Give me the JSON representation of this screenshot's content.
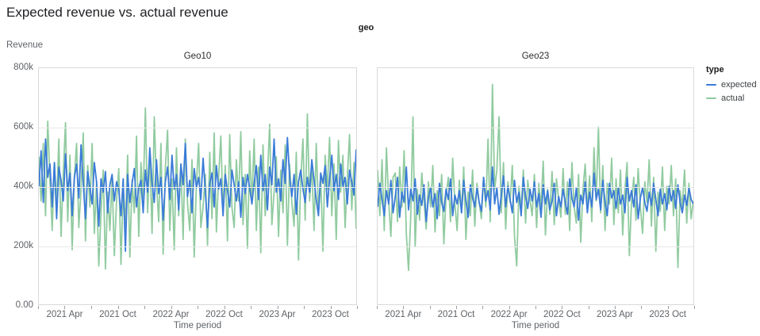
{
  "chart_data": {
    "type": "line",
    "title": "Expected revenue vs. actual revenue",
    "facet_field": "geo",
    "legend_title": "type",
    "legend_position": "right",
    "xlabel": "Time period",
    "ylabel": "Revenue",
    "x_domain": "weekly data, Jan 2021 - Dec 2023 (144 points per series)",
    "values_unit": "thousands of revenue (k)",
    "ylim_k": [
      0,
      800
    ],
    "grid": "horizontal",
    "y_ticks": [
      {
        "k": 0,
        "label": "0.00"
      },
      {
        "k": 200,
        "label": "200k"
      },
      {
        "k": 400,
        "label": "400k"
      },
      {
        "k": 600,
        "label": "600k"
      },
      {
        "k": 800,
        "label": "800k"
      }
    ],
    "x_months_total": 36,
    "x_ticks_months": [
      {
        "m": 0
      },
      {
        "m": 3,
        "label": "2021 Apr"
      },
      {
        "m": 6
      },
      {
        "m": 9,
        "label": "2021 Oct"
      },
      {
        "m": 12
      },
      {
        "m": 15,
        "label": "2022 Apr"
      },
      {
        "m": 18
      },
      {
        "m": 21,
        "label": "2022 Oct"
      },
      {
        "m": 24
      },
      {
        "m": 27,
        "label": "2023 Apr"
      },
      {
        "m": 30
      },
      {
        "m": 33,
        "label": "2023 Oct"
      },
      {
        "m": 36
      }
    ],
    "facets": [
      {
        "name": "Geo10",
        "series": [
          {
            "name": "expected",
            "color": "#3A7BD8",
            "values_k": [
              400,
              520,
              345,
              560,
              430,
              475,
              330,
              480,
              290,
              465,
              420,
              350,
              510,
              385,
              445,
              300,
              430,
              475,
              360,
              540,
              410,
              290,
              450,
              395,
              340,
              480,
              415,
              265,
              425,
              380,
              450,
              310,
              405,
              440,
              350,
              415,
              390,
              300,
              425,
              180,
              440,
              345,
              410,
              460,
              330,
              395,
              420,
              310,
              455,
              380,
              530,
              410,
              345,
              490,
              375,
              430,
              285,
              415,
              465,
              355,
              505,
              390,
              440,
              320,
              475,
              405,
              545,
              365,
              420,
              310,
              460,
              395,
              430,
              355,
              495,
              385,
              260,
              410,
              445,
              330,
              470,
              390,
              425,
              300,
              440,
              385,
              330,
              455,
              405,
              350,
              415,
              295,
              430,
              375,
              440,
              395,
              340,
              410,
              470,
              355,
              505,
              385,
              440,
              320,
              465,
              405,
              560,
              380,
              425,
              350,
              490,
              410,
              565,
              430,
              365,
              440,
              305,
              415,
              455,
              390,
              345,
              430,
              380,
              490,
              420,
              355,
              300,
              445,
              410,
              470,
              330,
              425,
              505,
              385,
              440,
              355,
              475,
              400,
              430,
              340,
              455,
              415,
              370,
              525
            ]
          },
          {
            "name": "actual",
            "color": "#91CBA0",
            "values_k": [
              500,
              350,
              545,
              300,
              620,
              420,
              250,
              480,
              330,
              560,
              230,
              445,
              615,
              280,
              505,
              185,
              430,
              545,
              260,
              390,
              580,
              215,
              470,
              330,
              545,
              240,
              415,
              130,
              310,
              455,
              120,
              380,
              250,
              430,
              165,
              350,
              460,
              135,
              395,
              270,
              505,
              160,
              420,
              310,
              570,
              230,
              480,
              360,
              665,
              310,
              520,
              240,
              635,
              410,
              280,
              545,
              170,
              460,
              590,
              250,
              425,
              185,
              530,
              300,
              475,
              220,
              560,
              340,
              250,
              490,
              160,
              410,
              545,
              260,
              330,
              440,
              200,
              515,
              290,
              580,
              245,
              430,
              570,
              310,
              470,
              215,
              575,
              330,
              260,
              490,
              350,
              585,
              270,
              440,
              190,
              520,
              340,
              560,
              250,
              465,
              175,
              540,
              300,
              430,
              610,
              270,
              380,
              500,
              230,
              455,
              310,
              540,
              200,
              475,
              345,
              265,
              515,
              150,
              420,
              560,
              285,
              645,
              350,
              470,
              250,
              545,
              310,
              430,
              180,
              505,
              390,
              565,
              300,
              475,
              220,
              555,
              380,
              505,
              260,
              430,
              575,
              320,
              480,
              255
            ]
          }
        ]
      },
      {
        "name": "Geo23",
        "series": [
          {
            "name": "expected",
            "color": "#3A7BD8",
            "values_k": [
              330,
              410,
              355,
              300,
              385,
              340,
              420,
              310,
              365,
              430,
              295,
              380,
              345,
              465,
              320,
              390,
              350,
              425,
              305,
              370,
              335,
              405,
              280,
              360,
              395,
              330,
              375,
              290,
              410,
              345,
              315,
              390,
              355,
              425,
              300,
              370,
              340,
              385,
              310,
              420,
              350,
              295,
              405,
              360,
              330,
              395,
              345,
              315,
              430,
              350,
              385,
              320,
              465,
              340,
              395,
              305,
              370,
              435,
              330,
              400,
              355,
              310,
              420,
              345,
              380,
              300,
              430,
              365,
              325,
              390,
              350,
              415,
              330,
              375,
              295,
              405,
              340,
              385,
              320,
              350,
              410,
              300,
              365,
              330,
              390,
              345,
              305,
              425,
              360,
              330,
              395,
              285,
              370,
              340,
              415,
              310,
              380,
              330,
              445,
              355,
              390,
              320,
              420,
              345,
              300,
              410,
              360,
              385,
              325,
              395,
              340,
              370,
              310,
              430,
              350,
              385,
              330,
              405,
              290,
              360,
              395,
              345,
              315,
              380,
              335,
              410,
              355,
              300,
              390,
              340,
              375,
              320,
              400,
              350,
              385,
              325,
              405,
              345,
              310,
              370,
              335,
              395,
              355,
              340
            ]
          },
          {
            "name": "actual",
            "color": "#91CBA0",
            "values_k": [
              455,
              300,
              490,
              250,
              530,
              350,
              230,
              430,
              445,
              280,
              465,
              330,
              520,
              240,
              115,
              300,
              635,
              195,
              390,
              285,
              445,
              350,
              255,
              415,
              330,
              470,
              245,
              385,
              300,
              440,
              205,
              370,
              430,
              280,
              495,
              340,
              250,
              420,
              310,
              465,
              220,
              380,
              300,
              455,
              265,
              410,
              345,
              290,
              430,
              330,
              560,
              280,
              745,
              390,
              455,
              635,
              310,
              480,
              255,
              415,
              345,
              470,
              230,
              130,
              400,
              320,
              455,
              275,
              420,
              355,
              300,
              440,
              260,
              410,
              330,
              485,
              235,
              390,
              305,
              450,
              270,
              425,
              355,
              295,
              460,
              305,
              415,
              250,
              480,
              330,
              275,
              440,
              210,
              390,
              475,
              315,
              435,
              280,
              530,
              350,
              600,
              310,
              470,
              250,
              410,
              340,
              495,
              270,
              425,
              310,
              455,
              235,
              390,
              480,
              165,
              350,
              430,
              285,
              460,
              330,
              240,
              415,
              345,
              490,
              265,
              430,
              180,
              380,
              315,
              465,
              250,
              400,
              340,
              470,
              300,
              425,
              125,
              385,
              330,
              455,
              275,
              410,
              290,
              350
            ]
          }
        ]
      }
    ]
  }
}
